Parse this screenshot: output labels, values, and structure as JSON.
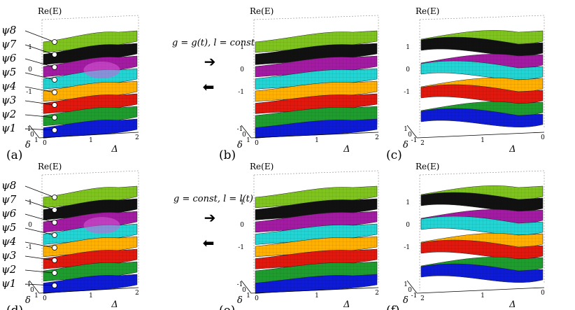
{
  "figure": {
    "title": "",
    "colors": {
      "psi8": "#7fc41e",
      "psi7": "#111111",
      "psi6": "#a31ba3",
      "psi5": "#22d4d4",
      "psi4": "#ffb000",
      "psi3": "#e0180e",
      "psi2": "#1f9c2e",
      "psi1": "#0d1bd6",
      "magenta_glow": "#d85bd8"
    },
    "rows": [
      {
        "condition": "g = g(t), l = const",
        "arrow_right": "➔",
        "arrow_left": "⬅",
        "panels": [
          {
            "tag": "(a)",
            "zlabel": "Re(E)",
            "xlabel": "Δ",
            "ylabel": "δ",
            "xticks": [
              "0",
              "1",
              "2"
            ],
            "yticks": [
              "-1",
              "0",
              "1"
            ],
            "zticks": [
              "1",
              "0",
              "-1"
            ],
            "states": [
              "ψ8",
              "ψ7",
              "ψ6",
              "ψ5",
              "ψ4",
              "ψ3",
              "ψ2",
              "ψ1"
            ]
          },
          {
            "tag": "(b)",
            "zlabel": "Re(E)",
            "xlabel": "Δ",
            "ylabel": "δ",
            "xticks": [
              "0",
              "1",
              "2"
            ],
            "yticks": [
              "-1",
              "0",
              "1"
            ],
            "zticks": [
              "1",
              "0",
              "-1"
            ]
          },
          {
            "tag": "(c)",
            "zlabel": "Re(E)",
            "xlabel": "Δ",
            "ylabel": "δ",
            "xticks": [
              "2",
              "1",
              "0"
            ],
            "yticks": [
              "1",
              "0",
              "-1"
            ],
            "zticks": [
              "1",
              "0",
              "-1"
            ]
          }
        ]
      },
      {
        "condition": "g = const, l = l(t)",
        "arrow_right": "➔",
        "arrow_left": "⬅",
        "panels": [
          {
            "tag": "(d)",
            "zlabel": "Re(E)",
            "xlabel": "Δ",
            "ylabel": "δ",
            "xticks": [
              "0",
              "1",
              "2"
            ],
            "yticks": [
              "-1",
              "0",
              "1"
            ],
            "zticks": [
              "1",
              "0",
              "-1"
            ],
            "states": [
              "ψ8",
              "ψ7",
              "ψ6",
              "ψ5",
              "ψ4",
              "ψ3",
              "ψ2",
              "ψ1"
            ]
          },
          {
            "tag": "(e)",
            "zlabel": "Re(E)",
            "xlabel": "Δ",
            "ylabel": "δ",
            "xticks": [
              "0",
              "1",
              "2"
            ],
            "yticks": [
              "-1",
              "0",
              "1"
            ],
            "zticks": [
              "1",
              "0",
              "-1"
            ]
          },
          {
            "tag": "(f)",
            "zlabel": "Re(E)",
            "xlabel": "Δ",
            "ylabel": "δ",
            "xticks": [
              "2",
              "1",
              "0"
            ],
            "yticks": [
              "1",
              "0",
              "-1"
            ],
            "zticks": [
              "1",
              "0",
              "-1"
            ]
          }
        ]
      }
    ]
  }
}
